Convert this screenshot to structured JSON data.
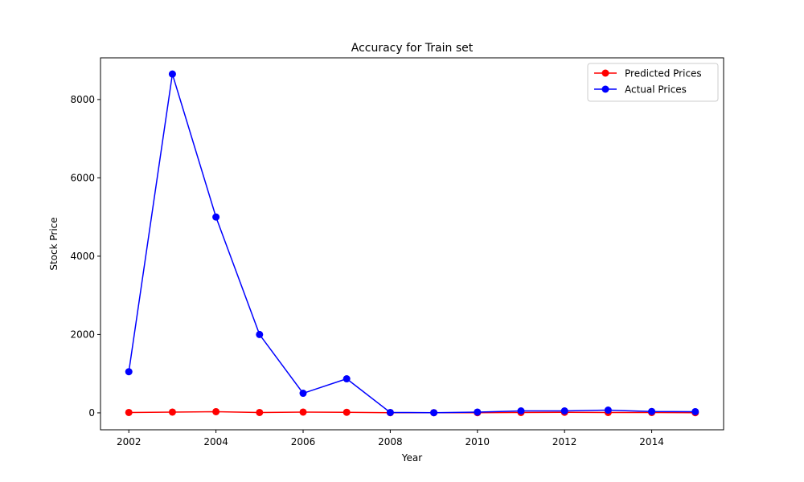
{
  "chart_data": {
    "type": "line",
    "title": "Accuracy for Train set",
    "xlabel": "Year",
    "ylabel": "Stock Price",
    "x": [
      2002,
      2003,
      2004,
      2005,
      2006,
      2007,
      2008,
      2009,
      2010,
      2011,
      2012,
      2013,
      2014,
      2015
    ],
    "xticks": [
      2002,
      2004,
      2006,
      2008,
      2010,
      2012,
      2014
    ],
    "yticks": [
      0,
      2000,
      4000,
      6000,
      8000
    ],
    "xlim": [
      2001.35,
      2015.65
    ],
    "ylim": [
      -432,
      9064
    ],
    "grid": false,
    "legend_position": "top-right",
    "series": [
      {
        "name": "Predicted Prices",
        "color": "#ff0000",
        "marker": "circle",
        "values": [
          10,
          20,
          30,
          10,
          20,
          15,
          5,
          5,
          5,
          10,
          15,
          10,
          10,
          5
        ]
      },
      {
        "name": "Actual Prices",
        "color": "#0000ff",
        "marker": "circle",
        "values": [
          1050,
          8650,
          5000,
          2000,
          500,
          870,
          10,
          5,
          20,
          50,
          50,
          70,
          35,
          30
        ]
      }
    ]
  }
}
